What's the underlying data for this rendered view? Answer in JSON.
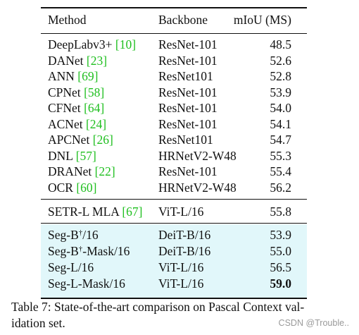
{
  "table": {
    "headers": {
      "method": "Method",
      "backbone": "Backbone",
      "miou": "mIoU (MS)"
    },
    "group1": [
      {
        "name": "DeepLabv3+ ",
        "ref": "[10]",
        "backbone": "ResNet-101",
        "miou": "48.5"
      },
      {
        "name": "DANet ",
        "ref": "[23]",
        "backbone": "ResNet-101",
        "miou": "52.6"
      },
      {
        "name": "ANN ",
        "ref": "[69]",
        "backbone": "ResNet101",
        "miou": "52.8"
      },
      {
        "name": "CPNet ",
        "ref": "[58]",
        "backbone": "ResNet-101",
        "miou": "53.9"
      },
      {
        "name": "CFNet ",
        "ref": "[64]",
        "backbone": "ResNet-101",
        "miou": "54.0"
      },
      {
        "name": "ACNet ",
        "ref": "[24]",
        "backbone": "ResNet-101",
        "miou": "54.1"
      },
      {
        "name": "APCNet ",
        "ref": "[26]",
        "backbone": "ResNet101",
        "miou": "54.7"
      },
      {
        "name": "DNL ",
        "ref": "[57]",
        "backbone": "HRNetV2-W48",
        "miou": "55.3"
      },
      {
        "name": "DRANet ",
        "ref": "[22]",
        "backbone": "ResNet-101",
        "miou": "55.4"
      },
      {
        "name": "OCR ",
        "ref": "[60]",
        "backbone": "HRNetV2-W48",
        "miou": "56.2"
      }
    ],
    "group2": [
      {
        "name": "SETR-L MLA ",
        "ref": "[67]",
        "backbone": "ViT-L/16",
        "miou": "55.8"
      }
    ],
    "group3": [
      {
        "name": "Seg-B",
        "sup": "†",
        "suffix": "/16",
        "backbone": "DeiT-B/16",
        "miou": "53.9"
      },
      {
        "name": "Seg-B",
        "sup": "†",
        "suffix": "-Mask/16",
        "backbone": "DeiT-B/16",
        "miou": "55.0"
      },
      {
        "name": "Seg-L/16",
        "backbone": "ViT-L/16",
        "miou": "56.5"
      },
      {
        "name": "Seg-L-Mask/16",
        "backbone": "ViT-L/16",
        "miou": "59.0",
        "bold": true
      }
    ]
  },
  "caption": {
    "line1": "Table 7: State-of-the-art comparison on Pascal Context val-",
    "line2": "idation set."
  },
  "watermark": "CSDN @Trouble.."
}
